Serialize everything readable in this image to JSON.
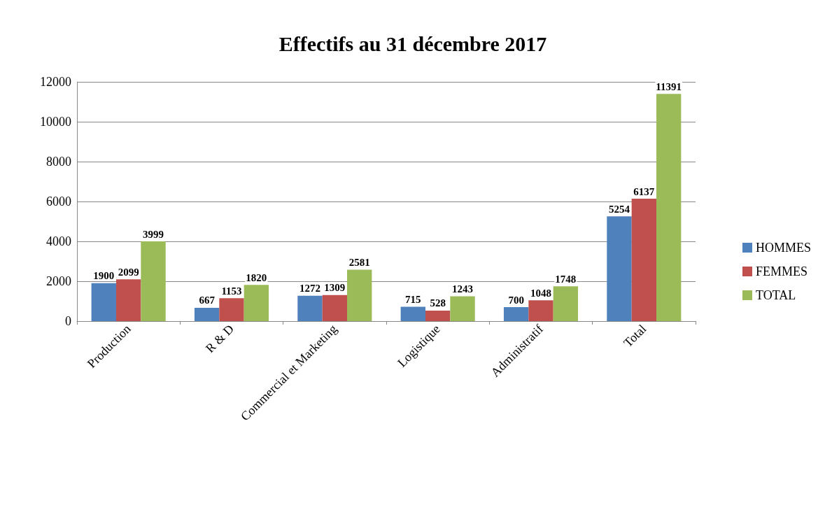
{
  "chart_data": {
    "type": "bar",
    "title": "Effectifs au 31 décembre 2017",
    "categories": [
      "Production",
      "R & D",
      "Commercial et Marketing",
      "Logistique",
      "Administratif",
      "Total"
    ],
    "series": [
      {
        "name": "HOMMES",
        "color": "#4f81bd",
        "values": [
          1900,
          667,
          1272,
          715,
          700,
          5254
        ]
      },
      {
        "name": "FEMMES",
        "color": "#c0504d",
        "values": [
          2099,
          1153,
          1309,
          528,
          1048,
          6137
        ]
      },
      {
        "name": "TOTAL",
        "color": "#9bbb59",
        "values": [
          3999,
          1820,
          2581,
          1243,
          1748,
          11391
        ]
      }
    ],
    "ylim": [
      0,
      12000
    ],
    "yticks": [
      0,
      2000,
      4000,
      6000,
      8000,
      10000,
      12000
    ],
    "grid": "y",
    "legend": "right",
    "data_labels": true
  }
}
